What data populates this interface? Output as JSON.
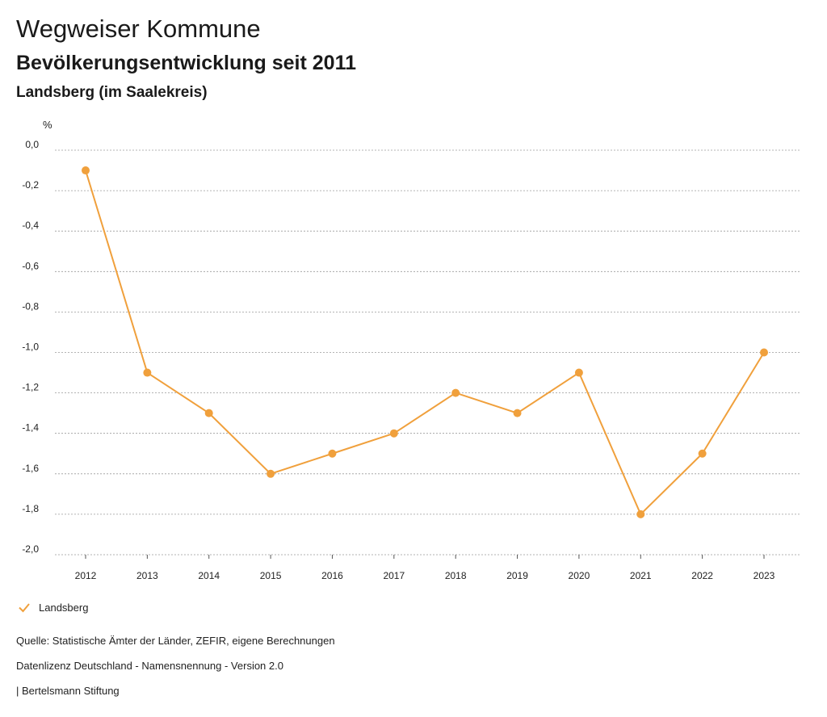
{
  "header": {
    "title": "Wegweiser Kommune",
    "subtitle": "Bevölkerungsentwicklung seit 2011",
    "region": "Landsberg (im Saalekreis)"
  },
  "colors": {
    "series": "#F0A03C",
    "grid": "#9a9a9a",
    "axis": "#555555"
  },
  "chart_data": {
    "type": "line",
    "ylabel": "%",
    "xlabel": "",
    "categories": [
      "2012",
      "2013",
      "2014",
      "2015",
      "2016",
      "2017",
      "2018",
      "2019",
      "2020",
      "2021",
      "2022",
      "2023"
    ],
    "series": [
      {
        "name": "Landsberg",
        "values": [
          -0.1,
          -1.1,
          -1.3,
          -1.6,
          -1.5,
          -1.4,
          -1.2,
          -1.3,
          -1.1,
          -1.8,
          -1.5,
          -1.0
        ]
      }
    ],
    "ylim": [
      -2.0,
      0.0
    ],
    "yticks": [
      0.0,
      -0.2,
      -0.4,
      -0.6,
      -0.8,
      -1.0,
      -1.2,
      -1.4,
      -1.6,
      -1.8,
      -2.0
    ],
    "ytick_labels": [
      "0,0",
      "-0,2",
      "-0,4",
      "-0,6",
      "-0,8",
      "-1,0",
      "-1,2",
      "-1,4",
      "-1,6",
      "-1,8",
      "-2,0"
    ],
    "grid": true,
    "legend_position": "bottom-left"
  },
  "legend": {
    "label": "Landsberg"
  },
  "footer": {
    "source": "Quelle: Statistische Ämter der Länder, ZEFIR, eigene Berechnungen",
    "license": "Datenlizenz Deutschland - Namensnennung - Version 2.0",
    "publisher": "| Bertelsmann Stiftung"
  }
}
